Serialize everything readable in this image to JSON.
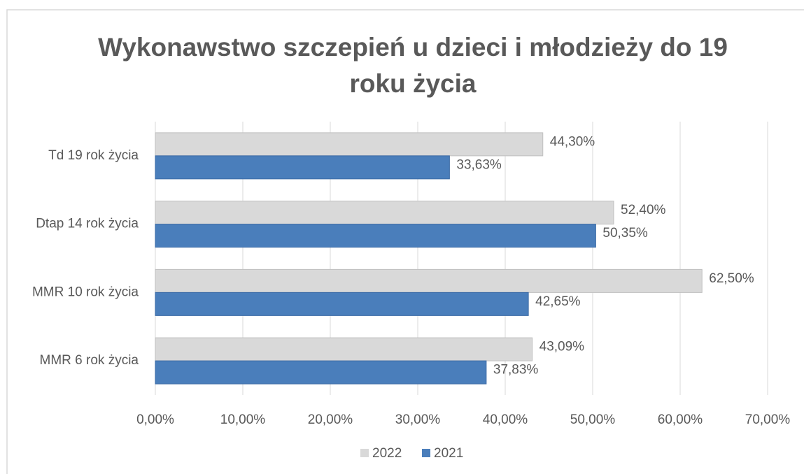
{
  "chart_data": {
    "type": "hbar",
    "title": "Wykonawstwo szczepień u dzieci i młodzieży do 19 roku życia",
    "categories": [
      "Td 19 rok życia",
      "Dtap 14 rok życia",
      "MMR 10 rok życia",
      "MMR 6 rok życia"
    ],
    "series": [
      {
        "name": "2022",
        "color": "#d9d9d9",
        "values": [
          44.3,
          52.4,
          62.5,
          43.09
        ],
        "value_labels": [
          "44,30%",
          "52,40%",
          "62,50%",
          "43,09%"
        ]
      },
      {
        "name": "2021",
        "color": "#4a7ebb",
        "values": [
          33.63,
          50.35,
          42.65,
          37.83
        ],
        "value_labels": [
          "33,63%",
          "50,35%",
          "42,65%",
          "37,83%"
        ]
      }
    ],
    "xlim": [
      0,
      70
    ],
    "xticks": [
      {
        "value": 0,
        "label": "0,00%"
      },
      {
        "value": 10,
        "label": "10,00%"
      },
      {
        "value": 20,
        "label": "20,00%"
      },
      {
        "value": 30,
        "label": "30,00%"
      },
      {
        "value": 40,
        "label": "40,00%"
      },
      {
        "value": 50,
        "label": "50,00%"
      },
      {
        "value": 60,
        "label": "60,00%"
      },
      {
        "value": 70,
        "label": "70,00%"
      }
    ],
    "grid": true,
    "legend": "bottom"
  }
}
